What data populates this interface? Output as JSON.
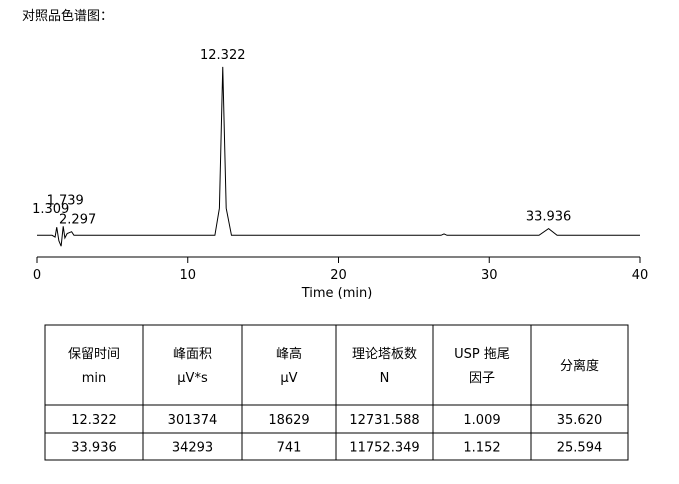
{
  "heading": "对照品色谱图：",
  "chart_data": {
    "type": "line",
    "color": "#000000",
    "x": [
      0,
      1.0,
      1.2,
      1.309,
      1.45,
      1.6,
      1.739,
      1.85,
      2.0,
      2.297,
      2.45,
      11.8,
      12.1,
      12.322,
      12.55,
      12.9,
      26.8,
      27.0,
      27.2,
      33.3,
      33.936,
      34.5,
      40
    ],
    "values": [
      0,
      0,
      -200,
      900,
      -600,
      -1200,
      1000,
      -300,
      200,
      400,
      0,
      0,
      3000,
      18629,
      3000,
      0,
      0,
      150,
      0,
      0,
      741,
      0,
      0
    ],
    "xlim": [
      0,
      40
    ],
    "xticks": [
      0,
      10,
      20,
      30,
      40
    ],
    "ylim": [
      -2400,
      20500
    ],
    "xlabel": "Time (min)",
    "annotations": [
      {
        "text": "1.309",
        "x": 1.309,
        "y": 900
      },
      {
        "text": "1.739",
        "x": 1.739,
        "y": 1000
      },
      {
        "text": "2.297",
        "x": 2.297,
        "y": 400
      },
      {
        "text": "12.322",
        "x": 12.322,
        "y": 18629
      },
      {
        "text": "33.936",
        "x": 33.936,
        "y": 741
      }
    ]
  },
  "table": {
    "header": [
      [
        "保留时间",
        "min"
      ],
      [
        "峰面积",
        "μV*s"
      ],
      [
        "峰高",
        "μV"
      ],
      [
        "理论塔板数",
        "N"
      ],
      [
        "USP 拖尾",
        "因子"
      ],
      [
        "分离度"
      ]
    ],
    "rows": [
      [
        "12.322",
        "301374",
        "18629",
        "12731.588",
        "1.009",
        "35.620"
      ],
      [
        "33.936",
        "34293",
        "741",
        "11752.349",
        "1.152",
        "25.594"
      ]
    ]
  }
}
